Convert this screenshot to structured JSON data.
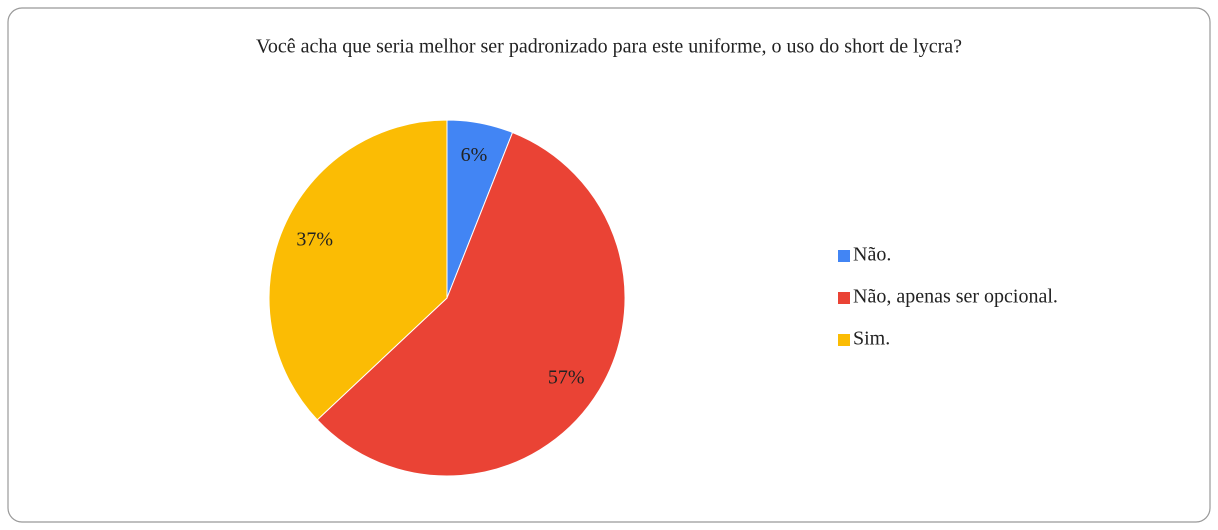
{
  "chart_data": {
    "type": "pie",
    "title": "Você acha que seria melhor ser padronizado para este uniforme, o uso do short de lycra?",
    "categories": [
      "Não.",
      "Não, apenas ser opcional.",
      "Sim."
    ],
    "values": [
      6,
      57,
      37
    ],
    "value_labels": [
      "6%",
      "57%",
      "37%"
    ],
    "colors": [
      "#4285f4",
      "#ea4335",
      "#fbbc04"
    ],
    "legend": "right"
  }
}
